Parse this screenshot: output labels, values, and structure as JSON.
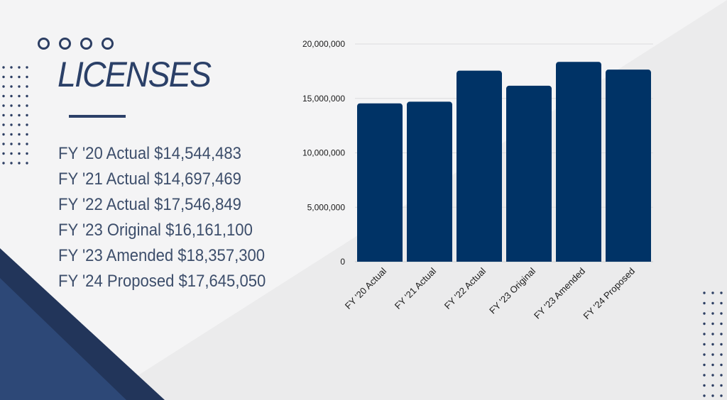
{
  "title": "LICENSES",
  "list_items": [
    "FY '20 Actual $14,544,483",
    "FY '21 Actual $14,697,469",
    "FY '22 Actual $17,546,849",
    "FY '23 Original $16,161,100",
    "FY '23 Amended $18,357,300",
    "FY '24 Proposed $17,645,050"
  ],
  "colors": {
    "bar": "#003366",
    "title": "#2b4068",
    "text": "#3d4e6b",
    "background": "#f4f4f5",
    "shape_dark": "#22355a",
    "shape_mid": "#2d4877"
  },
  "chart_data": {
    "type": "bar",
    "title": "",
    "xlabel": "",
    "ylabel": "",
    "categories": [
      "FY '20 Actual",
      "FY '21 Actual",
      "FY '22 Actual",
      "FY '23 Original",
      "FY '23 Amended",
      "FY '24 Proposed"
    ],
    "values": [
      14544483,
      14697469,
      17546849,
      16161100,
      18357300,
      17645050
    ],
    "ylim": [
      0,
      20000000
    ],
    "yticks": [
      0,
      5000000,
      10000000,
      15000000,
      20000000
    ],
    "ytick_labels": [
      "0",
      "5,000,000",
      "10,000,000",
      "15,000,000",
      "20,000,000"
    ],
    "grid": true,
    "legend": "none"
  }
}
